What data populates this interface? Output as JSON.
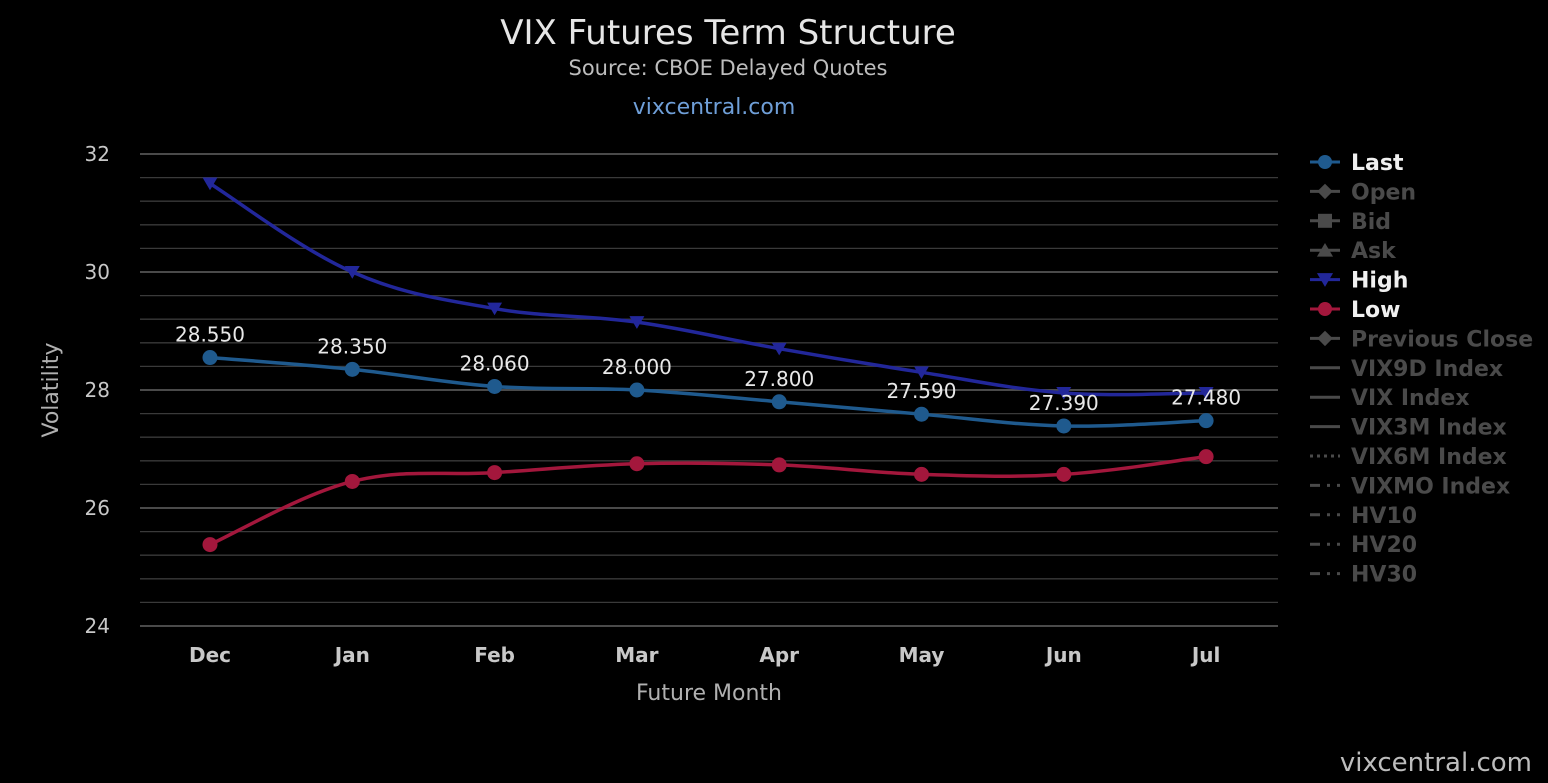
{
  "header": {
    "title": "VIX Futures Term Structure",
    "subtitle": "Source: CBOE Delayed Quotes",
    "site_link": "vixcentral.com"
  },
  "credit": "vixcentral.com",
  "colors": {
    "background": "#000000",
    "grid": "#3a3a3a",
    "last": "#1f5a8e",
    "high": "#22279a",
    "low": "#a3173c",
    "legend_active": "#f0f0f0",
    "legend_inactive": "#4a4a4a"
  },
  "chart_data": {
    "type": "line",
    "title": "VIX Futures Term Structure",
    "subtitle": "Source: CBOE Delayed Quotes",
    "xlabel": "Future Month",
    "ylabel": "Volatility",
    "categories": [
      "Dec",
      "Jan",
      "Feb",
      "Mar",
      "Apr",
      "May",
      "Jun",
      "Jul"
    ],
    "ylim": [
      24,
      32
    ],
    "yticks": [
      24,
      26,
      28,
      30,
      32
    ],
    "grid": true,
    "legend_position": "right",
    "series": [
      {
        "name": "Last",
        "key": "last",
        "marker": "circle",
        "values": [
          28.55,
          28.35,
          28.06,
          28.0,
          27.8,
          27.59,
          27.39,
          27.48
        ],
        "labels": [
          "28.550",
          "28.350",
          "28.060",
          "28.000",
          "27.800",
          "27.590",
          "27.390",
          "27.480"
        ]
      },
      {
        "name": "High",
        "key": "high",
        "marker": "triangle-down",
        "values": [
          31.5,
          30.0,
          29.38,
          29.15,
          28.7,
          28.3,
          27.95,
          27.95
        ]
      },
      {
        "name": "Low",
        "key": "low",
        "marker": "circle",
        "values": [
          25.38,
          26.45,
          26.6,
          26.75,
          26.73,
          26.57,
          26.57,
          26.87
        ]
      }
    ],
    "legend": [
      {
        "name": "Last",
        "key": "last",
        "symbol": "circle",
        "active": true
      },
      {
        "name": "Open",
        "key": "open",
        "symbol": "diamond",
        "active": false
      },
      {
        "name": "Bid",
        "key": "bid",
        "symbol": "square",
        "active": false
      },
      {
        "name": "Ask",
        "key": "ask",
        "symbol": "triangle",
        "active": false
      },
      {
        "name": "High",
        "key": "high",
        "symbol": "triangle-down",
        "active": true
      },
      {
        "name": "Low",
        "key": "low",
        "symbol": "circle",
        "active": true
      },
      {
        "name": "Previous Close",
        "key": "previous-close",
        "symbol": "diamond",
        "active": false
      },
      {
        "name": "VIX9D Index",
        "key": "vix9d-index",
        "symbol": "solid",
        "active": false
      },
      {
        "name": "VIX Index",
        "key": "vix-index",
        "symbol": "solid",
        "active": false
      },
      {
        "name": "VIX3M Index",
        "key": "vix3m-index",
        "symbol": "solid",
        "active": false
      },
      {
        "name": "VIX6M Index",
        "key": "vix6m-index",
        "symbol": "dotted",
        "active": false
      },
      {
        "name": "VIXMO Index",
        "key": "vixmo-index",
        "symbol": "dashdot",
        "active": false
      },
      {
        "name": "HV10",
        "key": "hv10",
        "symbol": "dashdot",
        "active": false
      },
      {
        "name": "HV20",
        "key": "hv20",
        "symbol": "dashdot",
        "active": false
      },
      {
        "name": "HV30",
        "key": "hv30",
        "symbol": "dashdot",
        "active": false
      }
    ]
  }
}
